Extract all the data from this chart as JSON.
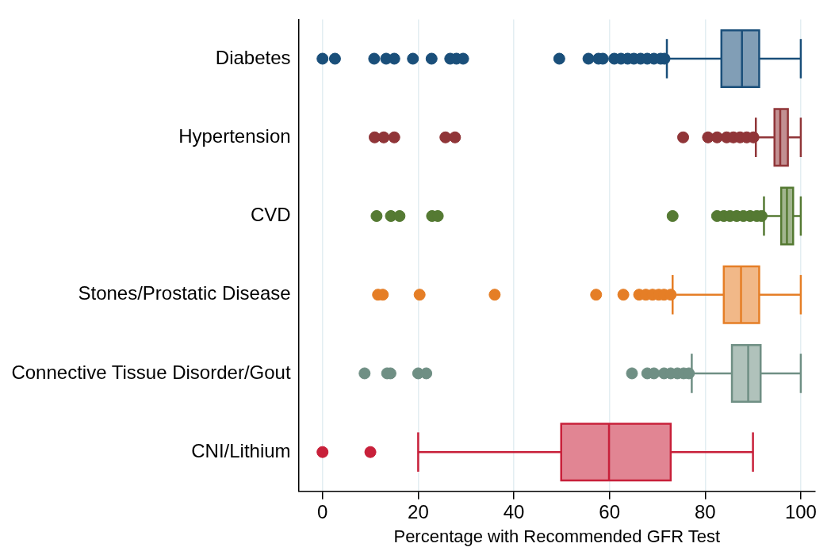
{
  "chart_data": {
    "type": "box",
    "orientation": "horizontal",
    "xlabel": "Percentage with Recommended GFR Test",
    "categories": [
      "Diabetes",
      "Hypertension",
      "CVD",
      "Stones/Prostatic Disease",
      "Connective Tissue Disorder/Gout",
      "CNI/Lithium"
    ],
    "colors": [
      "#1a4f7a",
      "#903538",
      "#557a33",
      "#e57e26",
      "#6f8f84",
      "#c8203a"
    ],
    "boxes": [
      {
        "low": 72,
        "q1": 83.4,
        "median": 87.7,
        "q3": 91.3,
        "high": 100,
        "outliers": [
          0,
          2.6,
          10.8,
          13.3,
          15,
          18.9,
          22.8,
          26.7,
          28,
          29.4,
          49.5,
          55.6,
          57.7,
          58.6,
          61,
          62.4,
          63.8,
          65.1,
          66.5,
          67.9,
          69.3,
          70.7,
          71.5
        ]
      },
      {
        "low": 90.6,
        "q1": 94.5,
        "median": 95.7,
        "q3": 97.3,
        "high": 100,
        "outliers": [
          10.9,
          12.8,
          15,
          25.7,
          27.7,
          75.4,
          80.6,
          82.5,
          84.5,
          85.9,
          87.3,
          88.7,
          90.1
        ]
      },
      {
        "low": 92.3,
        "q1": 95.9,
        "median": 97.1,
        "q3": 98.4,
        "high": 100,
        "outliers": [
          11.3,
          14.3,
          16.1,
          22.9,
          24.1,
          73.2,
          82.5,
          83.9,
          85.2,
          86.6,
          88,
          89.4,
          90.8,
          91.8
        ]
      },
      {
        "low": 73.2,
        "q1": 83.9,
        "median": 87.5,
        "q3": 91.3,
        "high": 100,
        "outliers": [
          11.6,
          12.6,
          20.3,
          36,
          57.2,
          62.9,
          66.2,
          67.6,
          69,
          70.3,
          71.4,
          72.8
        ]
      },
      {
        "low": 77.2,
        "q1": 85.6,
        "median": 89,
        "q3": 91.6,
        "high": 100,
        "outliers": [
          8.8,
          13.5,
          14.2,
          20,
          21.7,
          64.7,
          67.9,
          69.3,
          71.4,
          72.8,
          74.2,
          75.5,
          76.6
        ]
      },
      {
        "low": 20,
        "q1": 49.9,
        "median": 59.9,
        "q3": 72.8,
        "high": 90,
        "outliers": [
          0,
          10
        ]
      }
    ],
    "xlim": [
      -5,
      103
    ],
    "xticks": [
      0,
      20,
      40,
      60,
      80,
      100
    ],
    "grid": "x",
    "legend": false,
    "marker": "circle"
  }
}
